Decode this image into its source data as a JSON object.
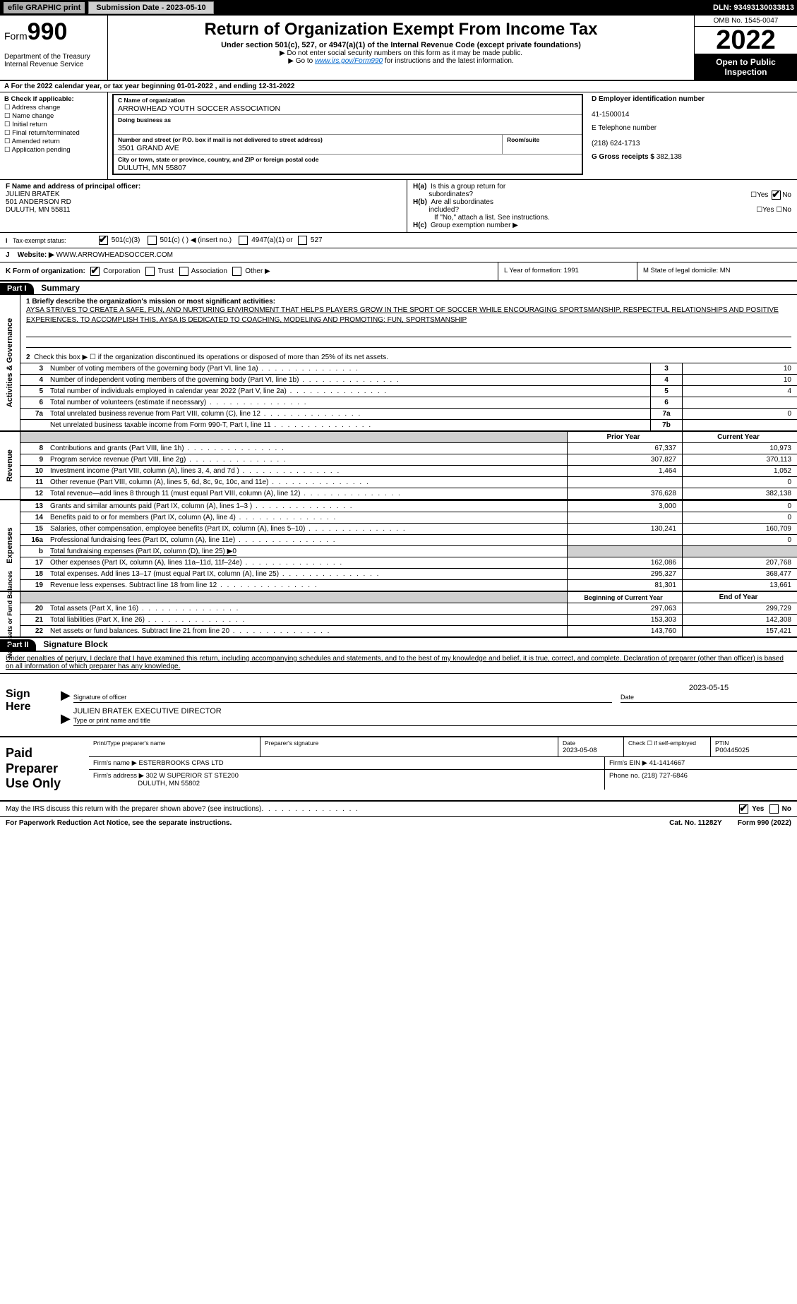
{
  "topbar": {
    "efile_label": "efile GRAPHIC print",
    "submission_label": "Submission Date - 2023-05-10",
    "dln": "DLN: 93493130033813"
  },
  "header": {
    "form_word": "Form",
    "form_num": "990",
    "title": "Return of Organization Exempt From Income Tax",
    "subtitle": "Under section 501(c), 527, or 4947(a)(1) of the Internal Revenue Code (except private foundations)",
    "note1": "▶ Do not enter social security numbers on this form as it may be made public.",
    "note2_pre": "▶ Go to ",
    "note2_link": "www.irs.gov/Form990",
    "note2_post": " for instructions and the latest information.",
    "dept": "Department of the Treasury\nInternal Revenue Service",
    "omb": "OMB No. 1545-0047",
    "year": "2022",
    "open": "Open to Public Inspection"
  },
  "lineA": "A For the 2022 calendar year, or tax year beginning 01-01-2022    , and ending 12-31-2022",
  "checkB": {
    "title": "B Check if applicable:",
    "opts": [
      "Address change",
      "Name change",
      "Initial return",
      "Final return/terminated",
      "Amended return",
      "Application pending"
    ]
  },
  "nameBox": {
    "c_label": "C Name of organization",
    "org": "ARROWHEAD YOUTH SOCCER ASSOCIATION",
    "dba_label": "Doing business as",
    "dba": "",
    "addr_label": "Number and street (or P.O. box if mail is not delivered to street address)",
    "room_label": "Room/suite",
    "addr": "3501 GRAND AVE",
    "city_label": "City or town, state or province, country, and ZIP or foreign postal code",
    "city": "DULUTH, MN  55807"
  },
  "rightCol": {
    "d_label": "D Employer identification number",
    "ein": "41-1500014",
    "e_label": "E Telephone number",
    "phone": "(218) 624-1713",
    "g_label": "G Gross receipts $",
    "gross": "382,138"
  },
  "fBlock": {
    "f_label": "F Name and address of principal officer:",
    "name": "JULIEN BRATEK",
    "addr1": "501 ANDERSON RD",
    "addr2": "DULUTH, MN  55811",
    "i_label": "Tax-exempt status:",
    "j_label": "J",
    "website_label": "Website: ▶",
    "website": "WWW.ARROWHEADSOCCER.COM"
  },
  "hBlock": {
    "ha": "H(a)  Is this a group return for subordinates?",
    "hb": "H(b)  Are all subordinates included?",
    "hb_note": "If \"No,\" attach a list. See instructions.",
    "hc": "H(c)  Group exemption number ▶"
  },
  "statusOpts": [
    "501(c)(3)",
    "501(c) (  ) ◀ (insert no.)",
    "4947(a)(1) or",
    "527"
  ],
  "kRow": {
    "k": "K Form of organization:",
    "opts": [
      "Corporation",
      "Trust",
      "Association",
      "Other ▶"
    ],
    "l": "L Year of formation: 1991",
    "m": "M State of legal domicile: MN"
  },
  "part1": {
    "label": "Part I",
    "title": "Summary",
    "side1": "Activities & Governance",
    "side2": "Revenue",
    "side3": "Expenses",
    "side4": "Net Assets or Fund Balances",
    "line1_label": "1 Briefly describe the organization's mission or most significant activities:",
    "mission": "AYSA STRIVES TO CREATE A SAFE, FUN, AND NURTURING ENVIRONMENT THAT HELPS PLAYERS GROW IN THE SPORT OF SOCCER WHILE ENCOURAGING SPORTSMANSHIP, RESPECTFUL RELATIONSHIPS AND POSITIVE EXPERIENCES. TO ACCOMPLISH THIS, AYSA IS DEDICATED TO COACHING, MODELING AND PROMOTING: FUN, SPORTSMANSHIP",
    "line2": "Check this box ▶ ☐ if the organization discontinued its operations or disposed of more than 25% of its net assets.",
    "rows_gov": [
      {
        "n": "3",
        "d": "Number of voting members of the governing body (Part VI, line 1a)",
        "box": "3",
        "v": "10"
      },
      {
        "n": "4",
        "d": "Number of independent voting members of the governing body (Part VI, line 1b)",
        "box": "4",
        "v": "10"
      },
      {
        "n": "5",
        "d": "Total number of individuals employed in calendar year 2022 (Part V, line 2a)",
        "box": "5",
        "v": "4"
      },
      {
        "n": "6",
        "d": "Total number of volunteers (estimate if necessary)",
        "box": "6",
        "v": ""
      },
      {
        "n": "7a",
        "d": "Total unrelated business revenue from Part VIII, column (C), line 12",
        "box": "7a",
        "v": "0"
      },
      {
        "n": "",
        "d": "Net unrelated business taxable income from Form 990-T, Part I, line 11",
        "box": "7b",
        "v": ""
      }
    ],
    "hdr_prior": "Prior Year",
    "hdr_curr": "Current Year",
    "rows_rev": [
      {
        "n": "8",
        "d": "Contributions and grants (Part VIII, line 1h)",
        "p": "67,337",
        "c": "10,973"
      },
      {
        "n": "9",
        "d": "Program service revenue (Part VIII, line 2g)",
        "p": "307,827",
        "c": "370,113"
      },
      {
        "n": "10",
        "d": "Investment income (Part VIII, column (A), lines 3, 4, and 7d )",
        "p": "1,464",
        "c": "1,052"
      },
      {
        "n": "11",
        "d": "Other revenue (Part VIII, column (A), lines 5, 6d, 8c, 9c, 10c, and 11e)",
        "p": "",
        "c": "0"
      },
      {
        "n": "12",
        "d": "Total revenue—add lines 8 through 11 (must equal Part VIII, column (A), line 12)",
        "p": "376,628",
        "c": "382,138"
      }
    ],
    "rows_exp": [
      {
        "n": "13",
        "d": "Grants and similar amounts paid (Part IX, column (A), lines 1–3 )",
        "p": "3,000",
        "c": "0"
      },
      {
        "n": "14",
        "d": "Benefits paid to or for members (Part IX, column (A), line 4)",
        "p": "",
        "c": "0"
      },
      {
        "n": "15",
        "d": "Salaries, other compensation, employee benefits (Part IX, column (A), lines 5–10)",
        "p": "130,241",
        "c": "160,709"
      },
      {
        "n": "16a",
        "d": "Professional fundraising fees (Part IX, column (A), line 11e)",
        "p": "",
        "c": "0"
      },
      {
        "n": "b",
        "d": "Total fundraising expenses (Part IX, column (D), line 25) ▶0",
        "p": "shade",
        "c": "shade"
      },
      {
        "n": "17",
        "d": "Other expenses (Part IX, column (A), lines 11a–11d, 11f–24e)",
        "p": "162,086",
        "c": "207,768"
      },
      {
        "n": "18",
        "d": "Total expenses. Add lines 13–17 (must equal Part IX, column (A), line 25)",
        "p": "295,327",
        "c": "368,477"
      },
      {
        "n": "19",
        "d": "Revenue less expenses. Subtract line 18 from line 12",
        "p": "81,301",
        "c": "13,661"
      }
    ],
    "hdr_begin": "Beginning of Current Year",
    "hdr_end": "End of Year",
    "rows_net": [
      {
        "n": "20",
        "d": "Total assets (Part X, line 16)",
        "p": "297,063",
        "c": "299,729"
      },
      {
        "n": "21",
        "d": "Total liabilities (Part X, line 26)",
        "p": "153,303",
        "c": "142,308"
      },
      {
        "n": "22",
        "d": "Net assets or fund balances. Subtract line 21 from line 20",
        "p": "143,760",
        "c": "157,421"
      }
    ]
  },
  "part2": {
    "label": "Part II",
    "title": "Signature Block",
    "intro": "Under penalties of perjury, I declare that I have examined this return, including accompanying schedules and statements, and to the best of my knowledge and belief, it is true, correct, and complete. Declaration of preparer (other than officer) is based on all information of which preparer has any knowledge.",
    "sign_here": "Sign Here",
    "sig_officer": "Signature of officer",
    "sig_date": "2023-05-15",
    "date_lbl": "Date",
    "typed_name": "JULIEN BRATEK EXECUTIVE DIRECTOR",
    "typed_lbl": "Type or print name and title",
    "paid": "Paid Preparer Use Only",
    "pp": {
      "name_lbl": "Print/Type preparer's name",
      "sig_lbl": "Preparer's signature",
      "date_lbl": "Date",
      "date": "2023-05-08",
      "check_lbl": "Check ☐ if self-employed",
      "ptin_lbl": "PTIN",
      "ptin": "P00445025",
      "firm_name_lbl": "Firm's name    ▶",
      "firm_name": "ESTERBROOKS CPAS LTD",
      "firm_ein_lbl": "Firm's EIN ▶",
      "firm_ein": "41-1414667",
      "firm_addr_lbl": "Firm's address ▶",
      "firm_addr": "302 W SUPERIOR ST STE200",
      "firm_city": "DULUTH, MN  55802",
      "phone_lbl": "Phone no.",
      "phone": "(218) 727-6846"
    },
    "may_irs": "May the IRS discuss this return with the preparer shown above? (see instructions)",
    "yes": "Yes",
    "no": "No"
  },
  "footer": {
    "pra": "For Paperwork Reduction Act Notice, see the separate instructions.",
    "cat": "Cat. No. 11282Y",
    "form": "Form 990 (2022)"
  }
}
